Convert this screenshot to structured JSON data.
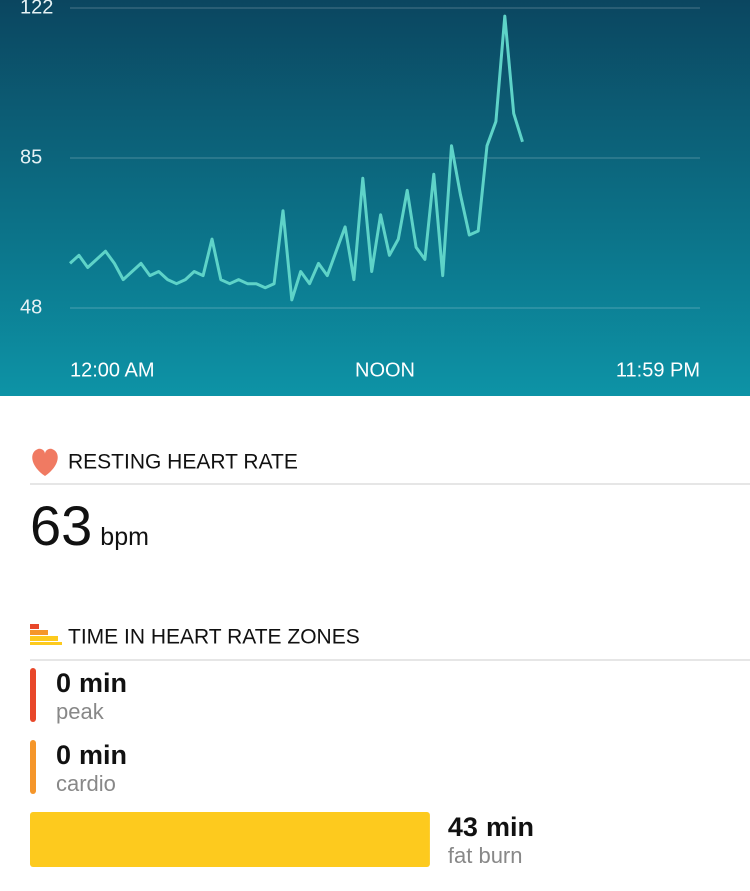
{
  "chart_data": {
    "type": "line",
    "x_labels": [
      "12:00 AM",
      "NOON",
      "11:59 PM"
    ],
    "series": [
      {
        "color": "#5ed3c8",
        "values": [
          59,
          61,
          58,
          60,
          62,
          59,
          55,
          57,
          59,
          56,
          57,
          55,
          54,
          55,
          57,
          56,
          65,
          55,
          54,
          55,
          54,
          54,
          53,
          54,
          72,
          50,
          57,
          54,
          59,
          56,
          62,
          68,
          55,
          80,
          57,
          71,
          61,
          65,
          77,
          63,
          60,
          81,
          56,
          88,
          76,
          66,
          67,
          88,
          94,
          120,
          96,
          89,
          null,
          null,
          null,
          null,
          null,
          null,
          null,
          null,
          null,
          null,
          null,
          null,
          null,
          null,
          null,
          null,
          null,
          null,
          null,
          null
        ]
      }
    ],
    "ylim": [
      48,
      122
    ],
    "yticks": [
      48,
      85,
      122
    ],
    "grid": true
  },
  "resting": {
    "title": "RESTING HEART RATE",
    "value": "63",
    "unit": "bpm"
  },
  "zones": {
    "title": "TIME IN HEART RATE ZONES",
    "items": [
      {
        "minutes": 0,
        "unit": "min",
        "name": "peak",
        "color": "#e8472a"
      },
      {
        "minutes": 0,
        "unit": "min",
        "name": "cardio",
        "color": "#f5962a"
      },
      {
        "minutes": 43,
        "unit": "min",
        "name": "fat burn",
        "color": "#fdca1e"
      }
    ]
  }
}
